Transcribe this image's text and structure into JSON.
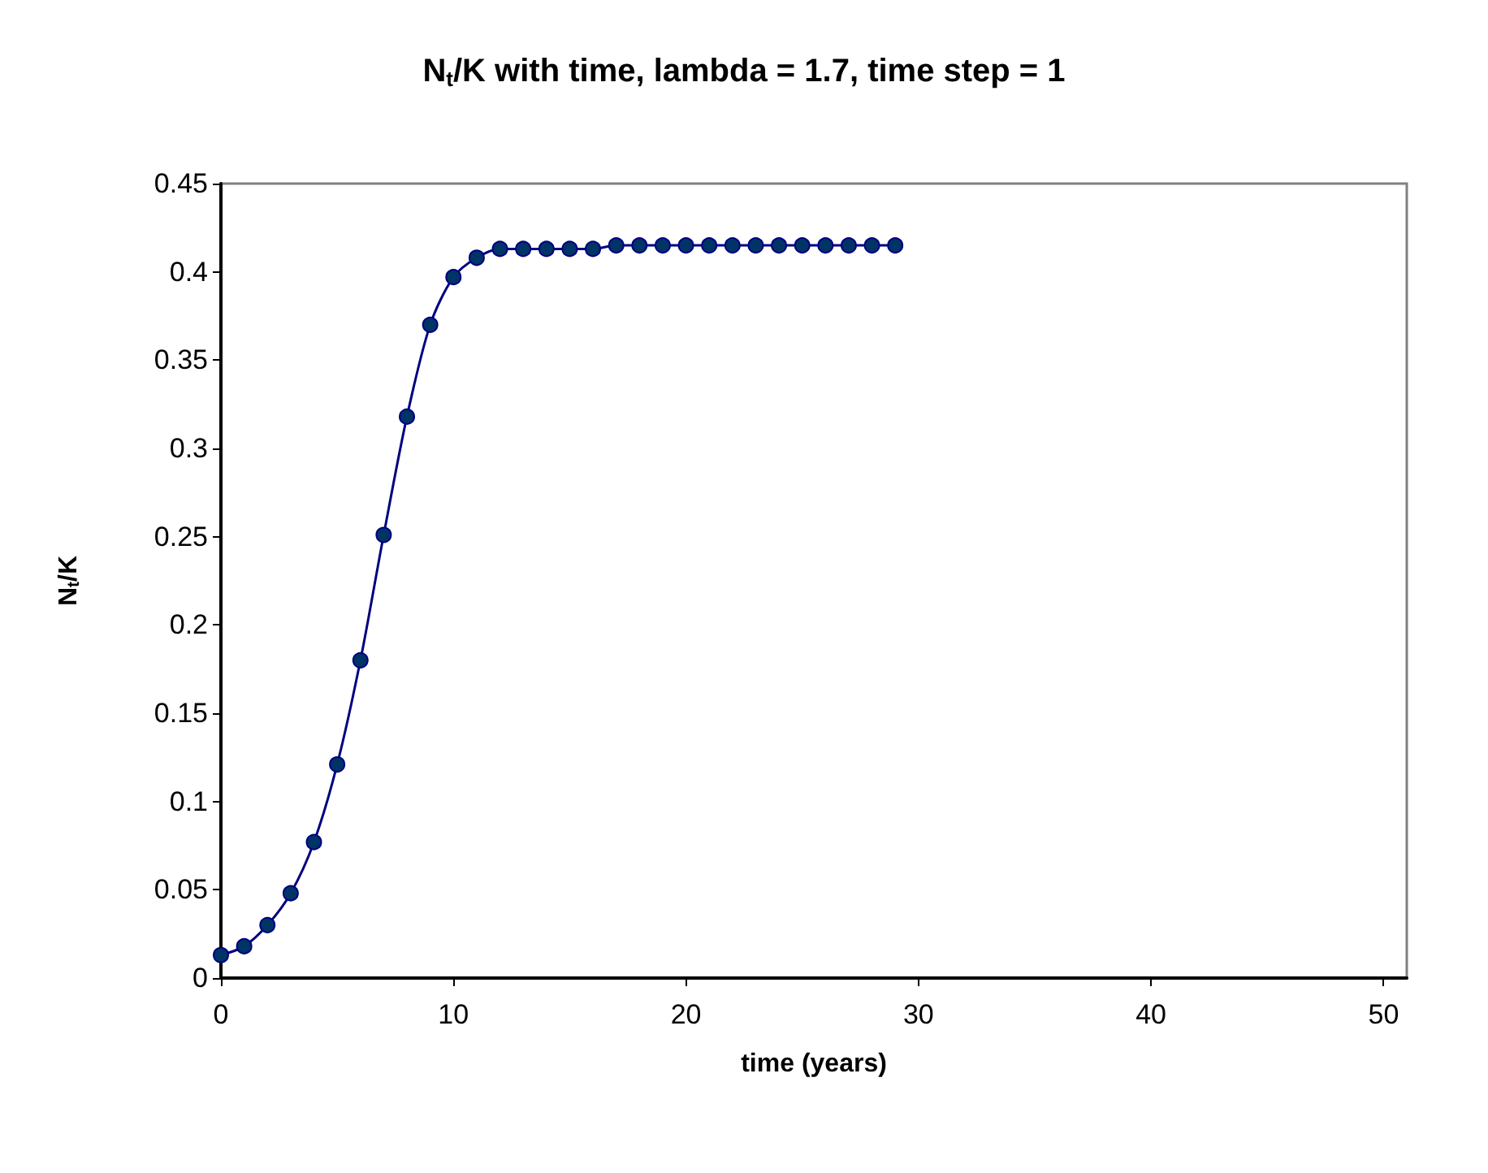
{
  "chart_data": {
    "type": "line",
    "title": "N$_{t}$/K with time, lambda = 1.7, time step = 1",
    "xlabel": "time (years)",
    "ylabel": "N$_{t}$/K",
    "x": [
      0,
      1,
      2,
      3,
      4,
      5,
      6,
      7,
      8,
      9,
      10,
      11,
      12,
      13,
      14,
      15,
      16,
      17,
      18,
      19,
      20,
      21,
      22,
      23,
      24,
      25,
      26,
      27,
      28,
      29
    ],
    "series": [
      {
        "color": "#000080",
        "values": [
          0.013,
          0.018,
          0.03,
          0.048,
          0.077,
          0.121,
          0.18,
          0.251,
          0.318,
          0.37,
          0.397,
          0.408,
          0.413,
          0.413,
          0.413,
          0.413,
          0.413,
          0.415,
          0.415,
          0.415,
          0.415,
          0.415,
          0.415,
          0.415,
          0.415,
          0.415,
          0.415,
          0.415,
          0.415,
          0.415
        ]
      }
    ],
    "xlim": [
      0,
      51
    ],
    "xticks": [
      0,
      10,
      20,
      30,
      40,
      50
    ],
    "ylim": [
      0,
      0.45
    ],
    "yticks": [
      0,
      0.05,
      0.1,
      0.15,
      0.2,
      0.25,
      0.3,
      0.35,
      0.4,
      0.45
    ],
    "grid": false,
    "marker": "circle",
    "line_style": "solid"
  }
}
